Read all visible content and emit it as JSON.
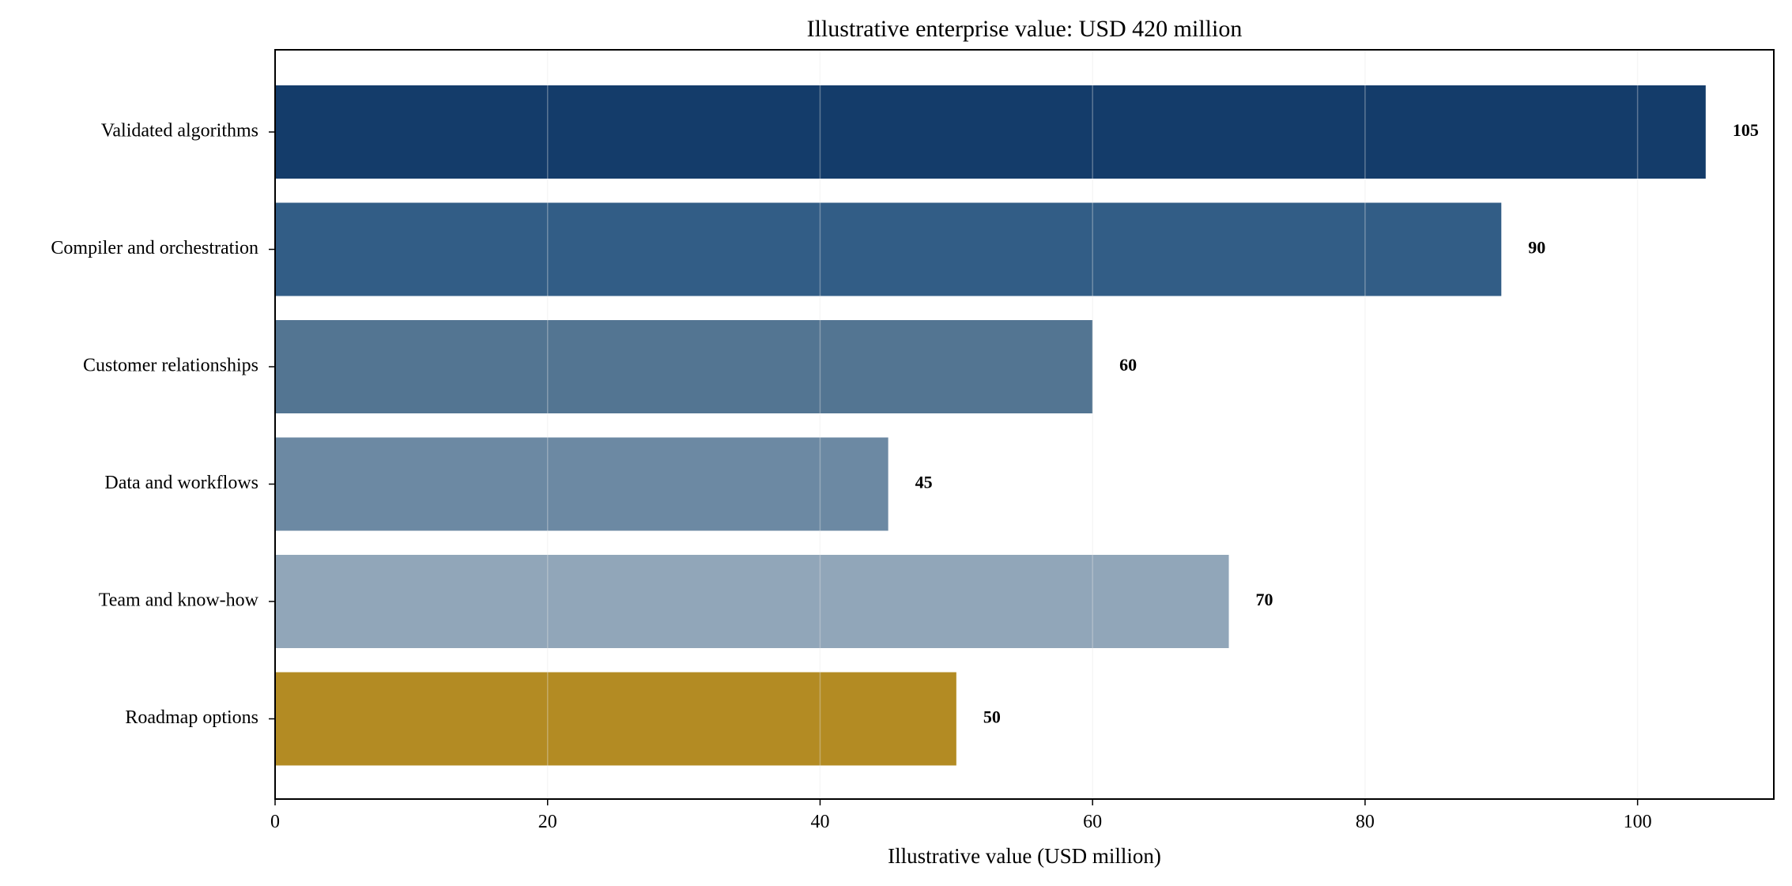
{
  "chart_data": {
    "type": "bar",
    "orientation": "horizontal",
    "title": "Illustrative enterprise value: USD 420 million",
    "xlabel": "Illustrative value (USD million)",
    "ylabel": "",
    "categories": [
      "Validated algorithms",
      "Compiler and orchestration",
      "Customer relationships",
      "Data and workflows",
      "Team and know-how",
      "Roadmap options"
    ],
    "values": [
      105,
      90,
      60,
      45,
      70,
      50
    ],
    "value_labels": [
      "105",
      "90",
      "60",
      "45",
      "70",
      "50"
    ],
    "colors": [
      "#143c6a",
      "#325d86",
      "#537592",
      "#6c89a3",
      "#91a6b9",
      "#b38b23"
    ],
    "xlim": [
      0,
      110
    ],
    "xticks": [
      0,
      20,
      40,
      60,
      80,
      100
    ],
    "xtick_labels": [
      "0",
      "20",
      "40",
      "60",
      "80",
      "100"
    ],
    "grid": "vertical",
    "grid_color": "#e6e6e6",
    "legend": "none"
  }
}
